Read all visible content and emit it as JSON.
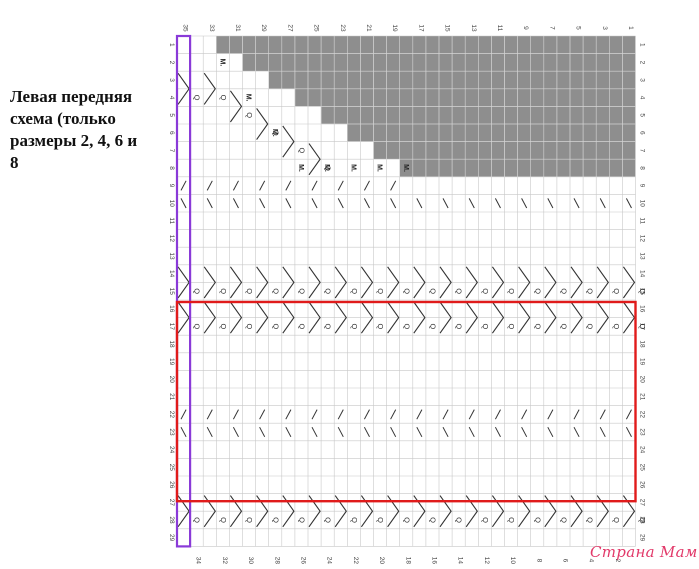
{
  "caption": "Левая передняя\nсхема (только\nразмеры 2, 4, 6 и\n8",
  "chart": {
    "rows": 29,
    "stitches": 35,
    "top_col_labels": [
      "35",
      "",
      "33",
      "",
      "31",
      "",
      "29",
      "",
      "27",
      "",
      "25",
      "",
      "23",
      "",
      "21",
      "",
      "19",
      "",
      "17",
      "",
      "15",
      "",
      "13",
      "",
      "11",
      "",
      "9",
      "",
      "7",
      "",
      "5",
      "",
      "3",
      "",
      "1"
    ],
    "bottom_col_labels": [
      "",
      "34",
      "",
      "32",
      "",
      "30",
      "",
      "28",
      "",
      "26",
      "",
      "24",
      "",
      "22",
      "",
      "20",
      "",
      "18",
      "",
      "16",
      "",
      "14",
      "",
      "12",
      "",
      "10",
      "",
      "8",
      "",
      "6",
      "",
      "4",
      "",
      "2",
      ""
    ],
    "row_labels": [
      "1",
      "2",
      "3",
      "4",
      "5",
      "6",
      "7",
      "8",
      "9",
      "10",
      "11",
      "12",
      "13",
      "14",
      "15",
      "16",
      "17",
      "18",
      "19",
      "20",
      "21",
      "22",
      "23",
      "24",
      "25",
      "26",
      "27",
      "28",
      "29"
    ],
    "right_row_labels": [
      "1",
      "2",
      "3",
      "4",
      "5",
      "6",
      "7",
      "8",
      "9",
      "10",
      "11",
      "12",
      "13",
      "14",
      "15",
      "16",
      "17",
      "18",
      "19",
      "20",
      "21",
      "22",
      "23",
      "24",
      "25",
      "26",
      "27",
      "28",
      "29"
    ],
    "marker_text": "M.",
    "symbols": {
      "slant_a": "/",
      "slant_b": "\\",
      "yo": "Q"
    },
    "colors": {
      "grid": "#c8c8c8",
      "shade": "#8e8e8e",
      "highlight_column": "#8a3ad8",
      "highlight_block": "#e01b1b",
      "symbol": "#333333"
    }
  },
  "watermark": "Страна Мам"
}
